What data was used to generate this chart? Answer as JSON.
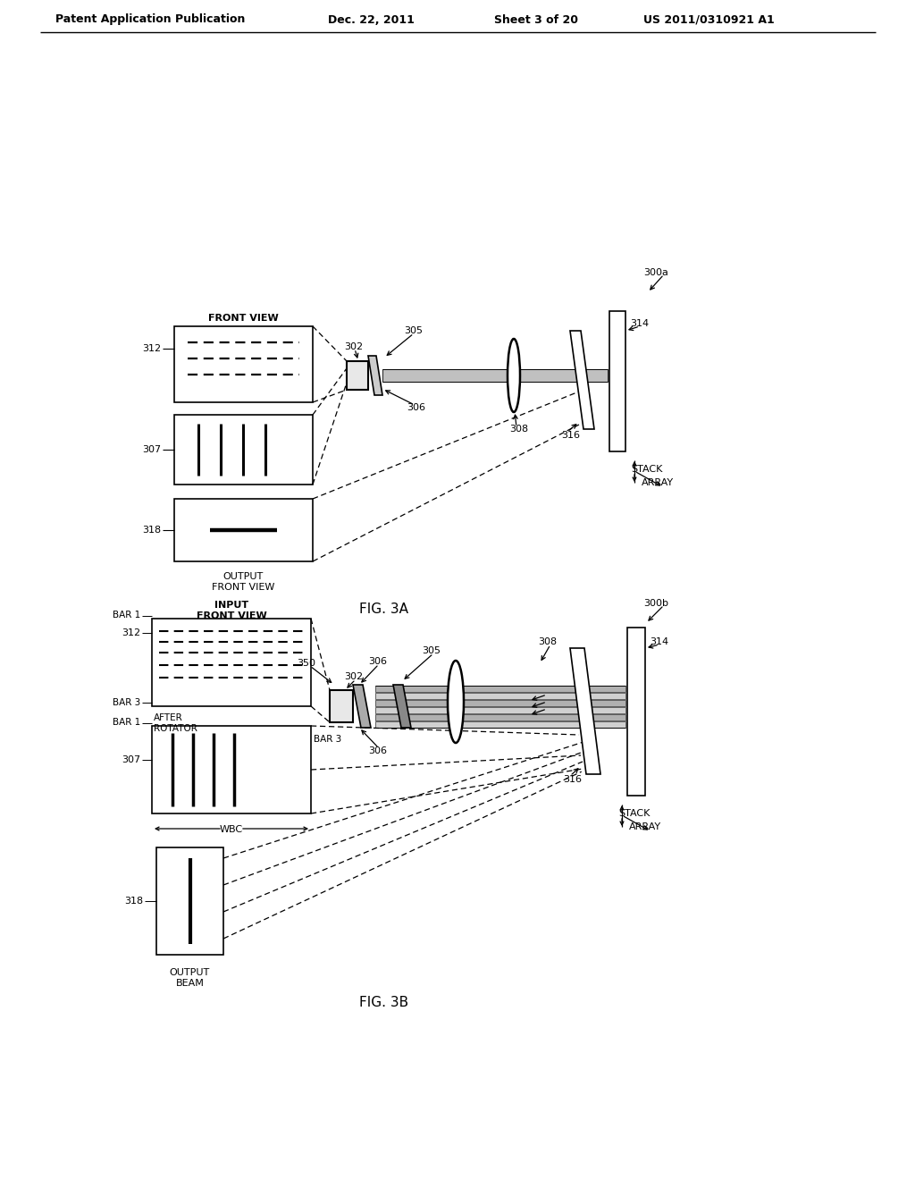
{
  "bg": "#ffffff",
  "header_left": "Patent Application Publication",
  "header_date": "Dec. 22, 2011",
  "header_sheet": "Sheet 3 of 20",
  "header_patent": "US 2011/0310921 A1",
  "fig3a": "FIG. 3A",
  "fig3b": "FIG. 3B",
  "L": {
    "300a": "300a",
    "300b": "300b",
    "302": "302",
    "305": "305",
    "306": "306",
    "307": "307",
    "308": "308",
    "312": "312",
    "314": "314",
    "316": "316",
    "318": "318",
    "350": "350",
    "front_view": "FRONT VIEW",
    "out_fv": "OUTPUT\nFRONT VIEW",
    "in_fv": "INPUT\nFRONT VIEW",
    "after_rot": "AFTER\nROTATOR",
    "bar1": "BAR 1",
    "bar3": "BAR 3",
    "wbc": "WBC",
    "stack": "STACK",
    "array": "ARRAY",
    "out_beam": "OUTPUT\nBEAM"
  }
}
